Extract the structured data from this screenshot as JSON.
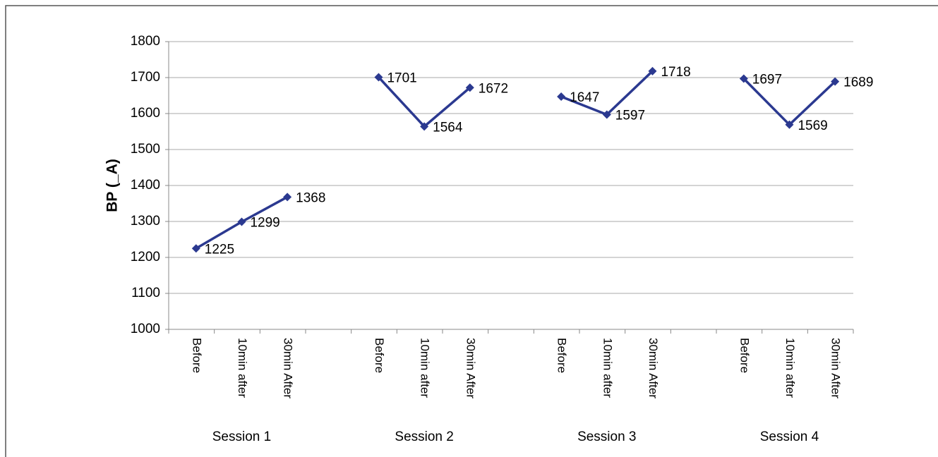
{
  "chart_data": {
    "type": "line",
    "y_label": "BP (_A)",
    "categories": [
      "Before",
      "10min after",
      "30min After",
      null,
      "Before",
      "10min after",
      "30min After",
      null,
      "Before",
      "10min after",
      "30min After",
      null,
      "Before",
      "10min after",
      "30min After"
    ],
    "groups": [
      "Session 1",
      "Session 2",
      "Session 3",
      "Session 4"
    ],
    "values": [
      1225,
      1299,
      1368,
      null,
      1701,
      1564,
      1672,
      null,
      1647,
      1597,
      1718,
      null,
      1697,
      1569,
      1689
    ],
    "color": "#2b3990",
    "ylim": [
      1000,
      1800
    ],
    "yticks": [
      1000,
      1100,
      1200,
      1300,
      1400,
      1500,
      1600,
      1700,
      1800
    ],
    "grid": true
  }
}
